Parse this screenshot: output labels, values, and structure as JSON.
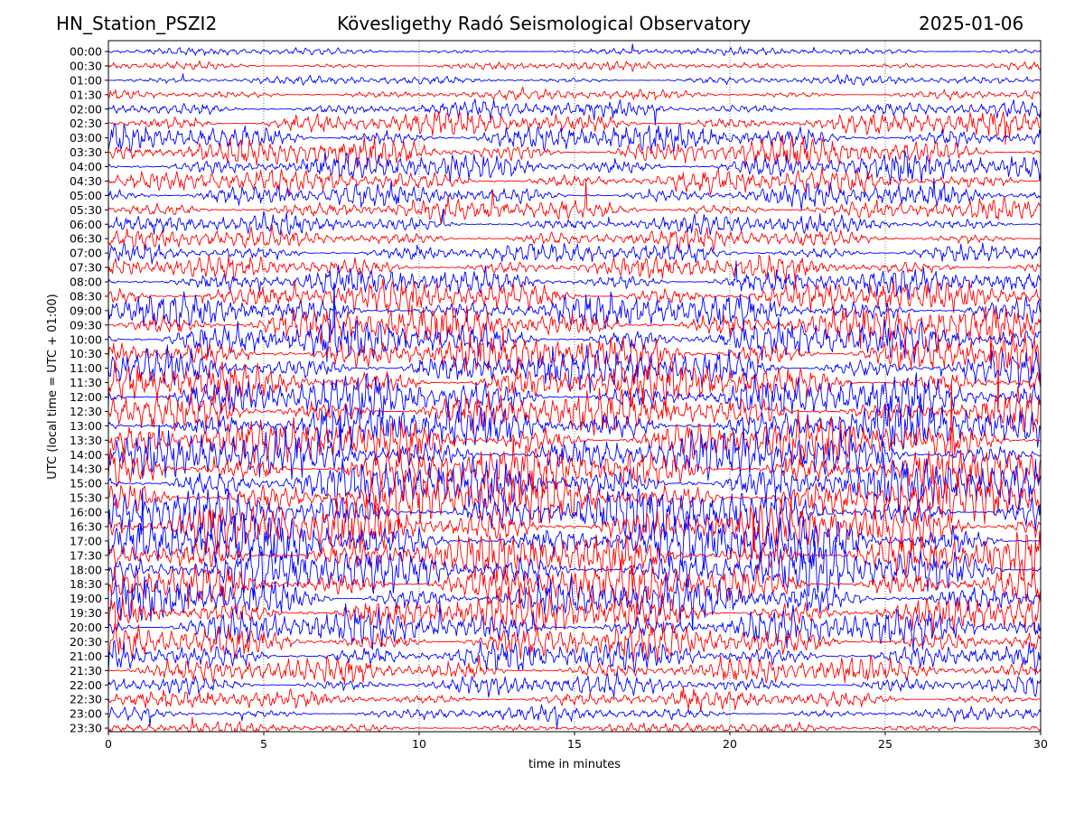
{
  "header": {
    "station": "HN_Station_PSZI2",
    "observatory": "Kövesligethy Radó Seismological Observatory",
    "date": "2025-01-06"
  },
  "chart_data": {
    "type": "line",
    "title": "Kövesligethy Radó Seismological Observatory",
    "xlabel": "time in minutes",
    "ylabel": "UTC (local time = UTC + 01:00)",
    "xlim": [
      0,
      30
    ],
    "xticks": [
      0,
      5,
      10,
      15,
      20,
      25,
      30
    ],
    "grid": "vertical dotted lines at each x tick",
    "trace_colors": [
      "#0000ff",
      "#ff0000"
    ],
    "rows": [
      "00:00",
      "00:30",
      "01:00",
      "01:30",
      "02:00",
      "02:30",
      "03:00",
      "03:30",
      "04:00",
      "04:30",
      "05:00",
      "05:30",
      "06:00",
      "06:30",
      "07:00",
      "07:30",
      "08:00",
      "08:30",
      "09:00",
      "09:30",
      "10:00",
      "10:30",
      "11:00",
      "11:30",
      "12:00",
      "12:30",
      "13:00",
      "13:30",
      "14:00",
      "14:30",
      "15:00",
      "15:30",
      "16:00",
      "16:30",
      "17:00",
      "17:30",
      "18:00",
      "18:30",
      "19:00",
      "19:30",
      "20:00",
      "20:30",
      "21:00",
      "21:30",
      "22:00",
      "22:30",
      "23:00",
      "23:30"
    ],
    "relative_amplitude": [
      0.6,
      0.7,
      0.7,
      0.9,
      1.4,
      1.9,
      2.2,
      2.3,
      2.1,
      1.9,
      1.8,
      1.7,
      1.6,
      1.6,
      1.7,
      1.9,
      2.1,
      2.5,
      2.8,
      3.0,
      3.1,
      3.2,
      3.2,
      3.2,
      3.3,
      3.4,
      3.5,
      3.6,
      3.7,
      3.8,
      3.9,
      3.9,
      4.0,
      4.0,
      4.0,
      3.9,
      3.8,
      3.6,
      3.4,
      3.2,
      3.0,
      2.8,
      2.5,
      2.1,
      1.7,
      1.4,
      1.1,
      0.9
    ]
  }
}
